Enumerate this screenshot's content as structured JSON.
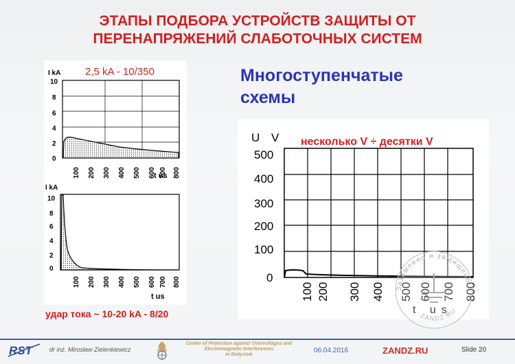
{
  "title": {
    "line1": "ЭТАПЫ ПОДБОРА УСТРОЙСТВ ЗАЩИТЫ ОТ",
    "line2": "ПЕРЕНАПРЯЖЕНИЙ СЛАБОТОЧНЫХ СИСТЕМ"
  },
  "subtitle": {
    "line1": "Многоступенчатые",
    "line2": "схемы"
  },
  "chart_top": {
    "caption": "2,5 kA - 10/350",
    "y_label": "I kA",
    "y_ticks": [
      "10",
      "8",
      "6",
      "4",
      "2",
      "0"
    ],
    "x_ticks": [
      "100",
      "200",
      "300",
      "400",
      "500",
      "600",
      "700",
      "800"
    ],
    "x_label": "t us"
  },
  "chart_bottom": {
    "y_label": "I kA",
    "y_ticks": [
      "10",
      "8",
      "6",
      "4",
      "2",
      "0"
    ],
    "x_ticks": [
      "100",
      "200",
      "300",
      "400",
      "500",
      "600",
      "700",
      "800"
    ],
    "x_label": "t us"
  },
  "chart_right": {
    "caption": "несколько V ÷ десятки V",
    "y_label": "U V",
    "y_ticks": [
      "500",
      "400",
      "300",
      "200",
      "100",
      "0"
    ],
    "x_ticks": [
      "100",
      "200",
      "300",
      "400",
      "500",
      "600",
      "700",
      "800"
    ],
    "x_label": "t us"
  },
  "bottom_caption": "удар тока ~ 10-20 kA - 8/20",
  "watermark": {
    "top_text": "Заземлено и защищено",
    "bottom_text": "ZANDZ.RU"
  },
  "footer": {
    "logo_text": "RST",
    "author": "dr inż. Mirosław Zielenkiewicz",
    "center_line1": "Center of Protection against Overvoltages and",
    "center_line2": "Electromagnetic Interferences",
    "center_line3": "in Białystok",
    "date": "06.04.2016",
    "site": "ZANDZ.RU",
    "slide": "Slide 20"
  },
  "colors": {
    "title_red": "#d21f1f",
    "subtitle_blue": "#2b34b8",
    "footer_line": "#3e5ea6"
  }
}
